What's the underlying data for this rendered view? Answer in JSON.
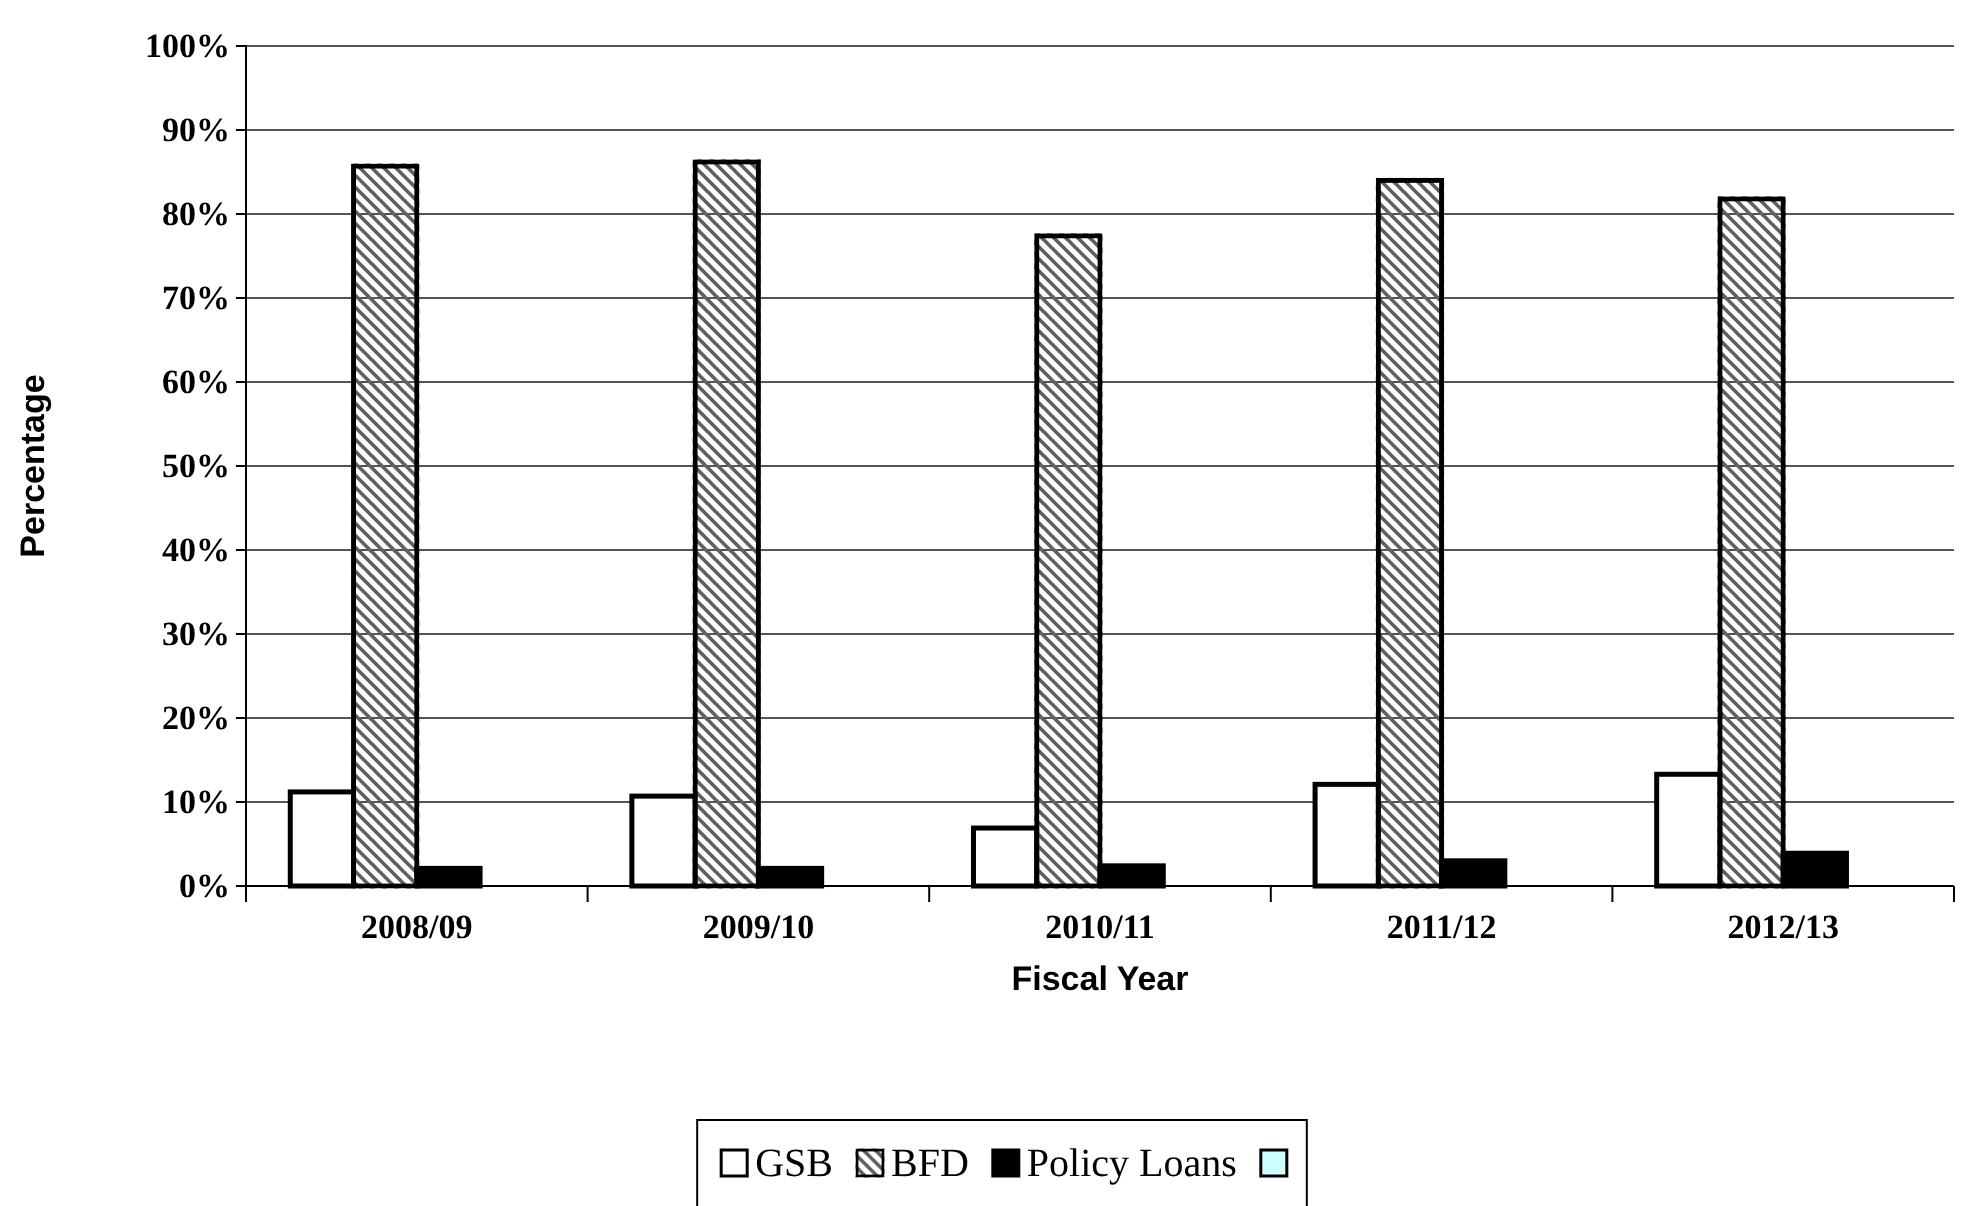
{
  "chart_data": {
    "type": "bar",
    "xlabel": "Fiscal Year",
    "ylabel": "Percentage",
    "categories": [
      "2008/09",
      "2009/10",
      "2010/11",
      "2011/12",
      "2012/13"
    ],
    "series": [
      {
        "name": "GSB",
        "color": "#ffffff",
        "values": [
          11.2,
          10.7,
          6.9,
          12.1,
          13.3
        ]
      },
      {
        "name": "BFD",
        "color": "#606060",
        "values": [
          85.7,
          86.2,
          77.4,
          84.0,
          81.8
        ]
      },
      {
        "name": "Policy Loans",
        "color": "#000000",
        "values": [
          2.1,
          2.1,
          2.4,
          3.0,
          3.9
        ]
      },
      {
        "color": "#ccffff",
        "values": [
          null,
          null,
          null,
          null,
          null
        ]
      }
    ],
    "ylim": [
      0,
      100
    ],
    "yticks": [
      {
        "value": 0,
        "label": "0%"
      },
      {
        "value": 10,
        "label": "10%"
      },
      {
        "value": 20,
        "label": "20%"
      },
      {
        "value": 30,
        "label": "30%"
      },
      {
        "value": 40,
        "label": "40%"
      },
      {
        "value": 50,
        "label": "50%"
      },
      {
        "value": 60,
        "label": "60%"
      },
      {
        "value": 70,
        "label": "70%"
      },
      {
        "value": 80,
        "label": "80%"
      },
      {
        "value": 90,
        "label": "90%"
      },
      {
        "value": 100,
        "label": "100%"
      }
    ],
    "grid": "y",
    "legend": "bottom"
  }
}
